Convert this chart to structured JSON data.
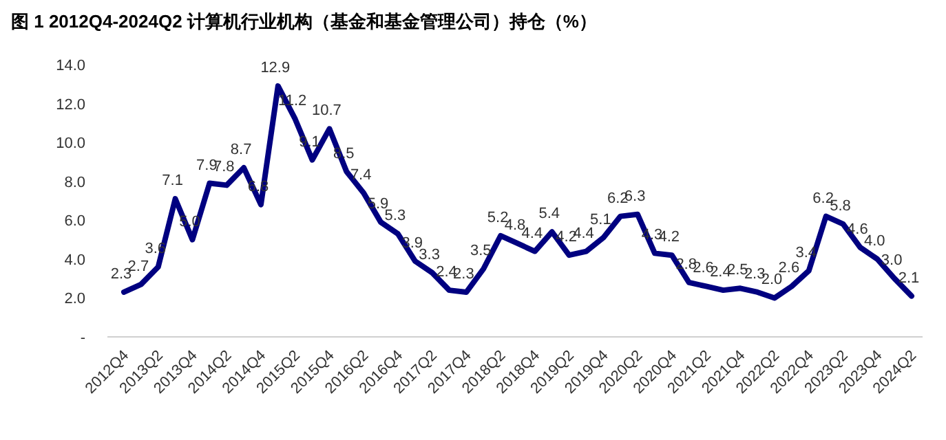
{
  "chart_data": {
    "type": "line",
    "title": "图 1 2012Q4-2024Q2 计算机行业机构（基金和基金管理公司）持仓（%）",
    "categories": [
      "2012Q4",
      null,
      "2013Q2",
      null,
      "2013Q4",
      null,
      "2014Q2",
      null,
      "2014Q4",
      null,
      "2015Q2",
      null,
      "2015Q4",
      null,
      "2016Q2",
      null,
      "2016Q4",
      null,
      "2017Q2",
      null,
      "2017Q4",
      null,
      "2018Q2",
      null,
      "2018Q4",
      null,
      "2019Q2",
      null,
      "2019Q4",
      null,
      "2020Q2",
      null,
      "2020Q4",
      null,
      "2021Q2",
      null,
      "2021Q4",
      null,
      "2022Q2",
      null,
      "2022Q4",
      null,
      "2023Q2",
      null,
      "2023Q4",
      null,
      "2024Q2"
    ],
    "values": [
      2.3,
      2.7,
      3.6,
      7.1,
      5.0,
      7.9,
      7.8,
      8.7,
      6.8,
      12.9,
      11.2,
      9.1,
      10.7,
      8.5,
      7.4,
      5.9,
      5.3,
      3.9,
      3.3,
      2.4,
      2.3,
      3.5,
      5.2,
      4.8,
      4.4,
      5.4,
      4.2,
      4.4,
      5.1,
      6.2,
      6.3,
      4.3,
      4.2,
      2.8,
      2.6,
      2.4,
      2.5,
      2.3,
      2.0,
      2.6,
      3.4,
      6.2,
      5.8,
      4.6,
      4.0,
      3.0,
      2.1
    ],
    "value_labels": [
      "2.3",
      "2.7",
      "3.6",
      "7.1",
      "5.0",
      "7.9",
      "7.8",
      "8.7",
      "6.8",
      "12.9",
      "11.2",
      "9.1",
      "10.7",
      "8.5",
      "7.4",
      "5.9",
      "5.3",
      "3.9",
      "3.3",
      "2.4",
      "2.3",
      "3.5",
      "5.2",
      "4.8",
      "4.4",
      "5.4",
      "4.2",
      "4.4",
      "5.1",
      "6.2",
      "6.3",
      "4.3",
      "4.2",
      "2.8",
      "2.6",
      "2.4",
      "2.5",
      "2.3",
      "2.0",
      "2.6",
      "3.4",
      "6.2",
      "5.8",
      "4.6",
      "4.0",
      "3.0",
      "2.1"
    ],
    "color": "#000080",
    "grid": false,
    "marker": "none",
    "line_style": "solid",
    "ylim": [
      0,
      14
    ],
    "yticks": [
      {
        "value": 0,
        "label": "-"
      },
      {
        "value": 2,
        "label": "2.0"
      },
      {
        "value": 4,
        "label": "4.0"
      },
      {
        "value": 6,
        "label": "6.0"
      },
      {
        "value": 8,
        "label": "8.0"
      },
      {
        "value": 10,
        "label": "10.0"
      },
      {
        "value": 12,
        "label": "12.0"
      },
      {
        "value": 14,
        "label": "14.0"
      }
    ]
  }
}
